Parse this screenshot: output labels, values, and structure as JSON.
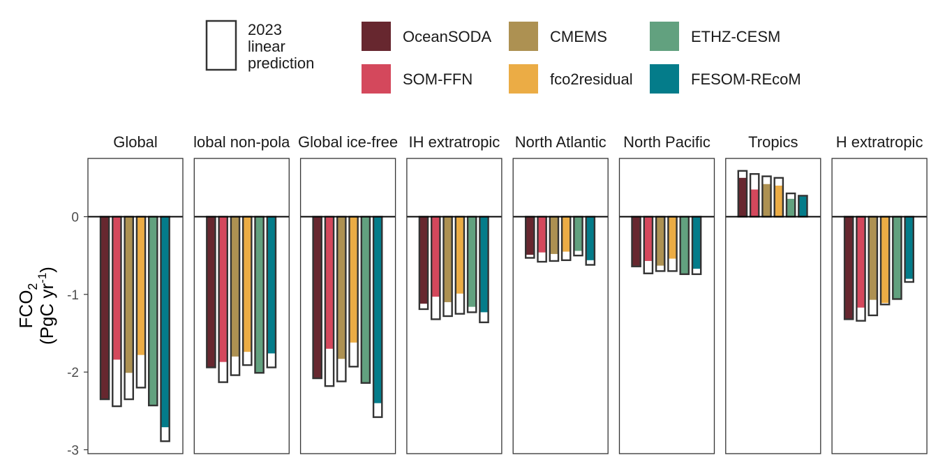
{
  "legend": {
    "outline_label_lines": [
      "2023",
      "linear",
      "prediction"
    ],
    "products": [
      "OceanSODA",
      "SOM-FFN",
      "CMEMS",
      "fco2residual",
      "ETHZ-CESM",
      "FESOM-REcoM"
    ]
  },
  "colors": {
    "OceanSODA": "#67272f",
    "SOM-FFN": "#d4485c",
    "CMEMS": "#ad9152",
    "fco2residual": "#ebac45",
    "ETHZ-CESM": "#62a17f",
    "FESOM-REcoM": "#047c8a",
    "outline": "#333333",
    "zero_line": "#000000"
  },
  "chart_data": {
    "type": "bar",
    "ylabel_main": "FCO",
    "ylabel_sub": "2",
    "ylabel_unit_pre": "(PgC yr",
    "ylabel_unit_sup": "-1",
    "ylabel_unit_post": ")",
    "ylim": [
      -3.05,
      0.75
    ],
    "yticks": [
      0,
      -1,
      -2,
      -3
    ],
    "ytick_labels": [
      "0",
      "-1",
      "-2",
      "-3"
    ],
    "series_names": [
      "OceanSODA",
      "SOM-FFN",
      "CMEMS",
      "fco2residual",
      "ETHZ-CESM",
      "FESOM-REcoM"
    ],
    "panels": [
      {
        "label": "Global",
        "observed": [
          -2.35,
          -1.84,
          -2.01,
          -1.78,
          -2.43,
          -2.71
        ],
        "prediction": [
          -2.35,
          -2.44,
          -2.35,
          -2.2,
          -2.43,
          -2.89
        ]
      },
      {
        "label": "lobal non-pola",
        "observed": [
          -1.94,
          -1.87,
          -1.8,
          -1.74,
          -2.01,
          -1.76
        ],
        "prediction": [
          -1.94,
          -2.13,
          -2.04,
          -1.91,
          -2.01,
          -1.94
        ]
      },
      {
        "label": "Global ice-free",
        "observed": [
          -2.08,
          -1.7,
          -1.83,
          -1.62,
          -2.14,
          -2.4
        ],
        "prediction": [
          -2.08,
          -2.18,
          -2.12,
          -1.93,
          -2.14,
          -2.58
        ]
      },
      {
        "label": "IH extratropic",
        "observed": [
          -1.12,
          -1.03,
          -1.1,
          -0.99,
          -1.16,
          -1.23
        ],
        "prediction": [
          -1.19,
          -1.32,
          -1.28,
          -1.25,
          -1.23,
          -1.36
        ]
      },
      {
        "label": "North Atlantic",
        "observed": [
          -0.49,
          -0.46,
          -0.48,
          -0.45,
          -0.44,
          -0.56
        ],
        "prediction": [
          -0.53,
          -0.58,
          -0.57,
          -0.56,
          -0.5,
          -0.62
        ]
      },
      {
        "label": "North Pacific",
        "observed": [
          -0.63,
          -0.57,
          -0.63,
          -0.54,
          -0.74,
          -0.67
        ],
        "prediction": [
          -0.64,
          -0.73,
          -0.7,
          -0.7,
          -0.74,
          -0.74
        ]
      },
      {
        "label": "Tropics",
        "observed": [
          0.5,
          0.35,
          0.42,
          0.4,
          0.23,
          0.26
        ],
        "prediction": [
          0.59,
          0.55,
          0.52,
          0.5,
          0.3,
          0.27
        ]
      },
      {
        "label": "H extratropic",
        "observed": [
          -1.32,
          -1.17,
          -1.07,
          -1.11,
          -1.06,
          -0.8
        ],
        "prediction": [
          -1.32,
          -1.34,
          -1.27,
          -1.13,
          -1.06,
          -0.84
        ]
      }
    ]
  }
}
